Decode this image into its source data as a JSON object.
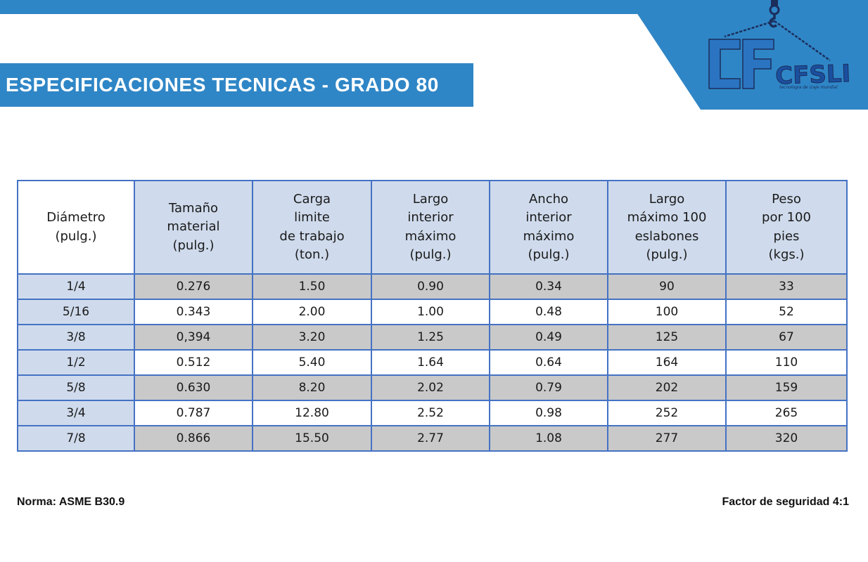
{
  "header": {
    "title": "ESPECIFICACIONES TECNICAS - GRADO 80"
  },
  "logo": {
    "text": "CFSLING",
    "tagline": "tecnologia de izaje mundial"
  },
  "table": {
    "headers": [
      [
        "Diámetro",
        "(pulg.)"
      ],
      [
        "Tamaño",
        "material",
        "(pulg.)"
      ],
      [
        "Carga",
        "limite",
        "de trabajo",
        "(ton.)"
      ],
      [
        "Largo",
        "interior",
        "máximo",
        "(pulg.)"
      ],
      [
        "Ancho",
        "interior",
        "máximo",
        "(pulg.)"
      ],
      [
        "Largo",
        "máximo 100",
        "eslabones",
        "(pulg.)"
      ],
      [
        "Peso",
        "por 100",
        "pies",
        "(kgs.)"
      ]
    ],
    "rows": [
      [
        "1/4",
        "0.276",
        "1.50",
        "0.90",
        "0.34",
        "90",
        "33"
      ],
      [
        "5/16",
        "0.343",
        "2.00",
        "1.00",
        "0.48",
        "100",
        "52"
      ],
      [
        "3/8",
        "0,394",
        "3.20",
        "1.25",
        "0.49",
        "125",
        "67"
      ],
      [
        "1/2",
        "0.512",
        "5.40",
        "1.64",
        "0.64",
        "164",
        "110"
      ],
      [
        "5/8",
        "0.630",
        "8.20",
        "2.02",
        "0.79",
        "202",
        "159"
      ],
      [
        "3/4",
        "0.787",
        "12.80",
        "2.52",
        "0.98",
        "252",
        "265"
      ],
      [
        "7/8",
        "0.866",
        "15.50",
        "2.77",
        "1.08",
        "277",
        "320"
      ]
    ]
  },
  "footer": {
    "norma": "Norma: ASME B30.9",
    "factor": "Factor de seguridad 4:1"
  },
  "colors": {
    "brand_blue": "#2f86c6",
    "header_cell": "#cfdbec",
    "row_shade": "#c9c9c9",
    "grid_line": "#4472c4",
    "logo_dark": "#1b2e5c"
  }
}
